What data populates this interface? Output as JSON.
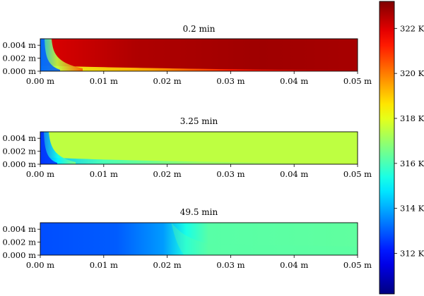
{
  "chart_data": [
    {
      "type": "heatmap",
      "title": "0.2 min",
      "xlim": [
        0.0,
        0.05
      ],
      "ylim": [
        0.0,
        0.005
      ],
      "x_ticks": [
        "0.00 m",
        "0.01 m",
        "0.02 m",
        "0.03 m",
        "0.04 m",
        "0.05 m"
      ],
      "y_ticks": [
        "0.000 m",
        "0.002 m",
        "0.004 m"
      ],
      "field": {
        "bulk_temperature_K": 322.6,
        "cold_corner_temperature_K": 311.8,
        "interface_temperature_K": 319.5
      }
    },
    {
      "type": "heatmap",
      "title": "3.25 min",
      "xlim": [
        0.0,
        0.05
      ],
      "ylim": [
        0.0,
        0.005
      ],
      "x_ticks": [
        "0.00 m",
        "0.01 m",
        "0.02 m",
        "0.03 m",
        "0.04 m",
        "0.05 m"
      ],
      "y_ticks": [
        "0.000 m",
        "0.002 m",
        "0.004 m"
      ],
      "field": {
        "bulk_temperature_K": 317.5,
        "cold_corner_temperature_K": 311.8,
        "interface_temperature_K": 316.0
      }
    },
    {
      "type": "heatmap",
      "title": "49.5 min",
      "xlim": [
        0.0,
        0.05
      ],
      "ylim": [
        0.0,
        0.005
      ],
      "x_ticks": [
        "0.00 m",
        "0.01 m",
        "0.02 m",
        "0.03 m",
        "0.04 m",
        "0.05 m"
      ],
      "y_ticks": [
        "0.000 m",
        "0.002 m",
        "0.004 m"
      ],
      "field": {
        "cold_region_temperature_K": 312.8,
        "front_position_m": 0.022,
        "warm_region_temperature_K": 316.2
      }
    }
  ],
  "colorbar": {
    "colormap": "jet",
    "vmin": 310.2,
    "vmax": 323.2,
    "ticks": [
      {
        "value": 312,
        "label": "312 K"
      },
      {
        "value": 314,
        "label": "314 K"
      },
      {
        "value": 316,
        "label": "316 K"
      },
      {
        "value": 318,
        "label": "318 K"
      },
      {
        "value": 320,
        "label": "320 K"
      },
      {
        "value": 322,
        "label": "322 K"
      }
    ]
  }
}
